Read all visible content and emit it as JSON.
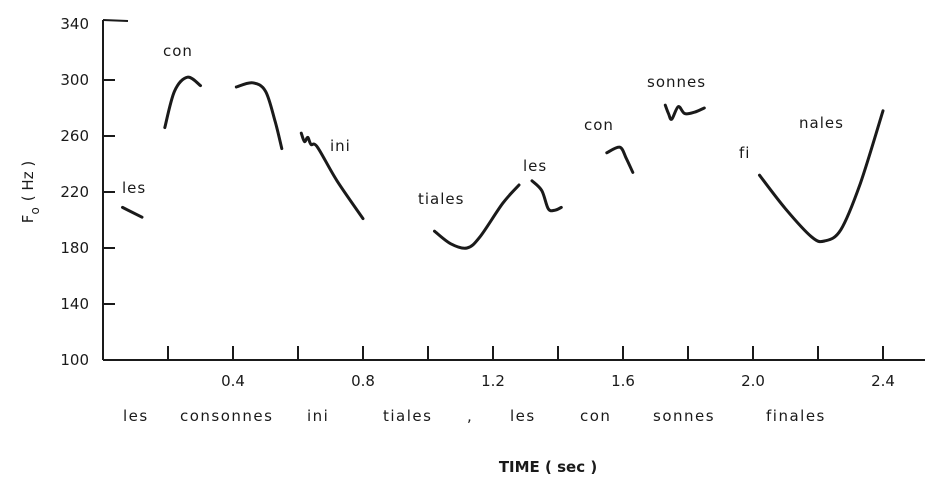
{
  "chart_data": {
    "type": "line",
    "ylabel": "F",
    "ylabel_sub": "o",
    "ylabel_unit": "( Hz )",
    "xlabel": "TIME  ( sec )",
    "xlim": [
      0.0,
      2.4
    ],
    "ylim": [
      100,
      340
    ],
    "x_ticks": [
      0.4,
      0.8,
      1.2,
      1.6,
      2.0,
      2.4
    ],
    "x_tick_labels": [
      "0.4",
      "0.8",
      "1.2",
      "1.6",
      "2.0",
      "2.4"
    ],
    "x_minor_ticks": [
      0.2,
      0.6,
      1.0,
      1.4,
      1.8,
      2.2
    ],
    "y_ticks": [
      100,
      140,
      180,
      220,
      260,
      300,
      340
    ],
    "y_tick_labels": [
      "100",
      "140",
      "180",
      "220",
      "260",
      "300",
      "340"
    ],
    "sentence": [
      "les",
      "consonnes",
      "ini",
      "tiales",
      ",",
      "les",
      "con",
      "sonnes",
      "finales"
    ],
    "segments": [
      {
        "label": "les",
        "points": [
          [
            0.06,
            209
          ],
          [
            0.12,
            202
          ]
        ]
      },
      {
        "label": "con",
        "points": [
          [
            0.19,
            266
          ],
          [
            0.22,
            292
          ],
          [
            0.26,
            302
          ],
          [
            0.3,
            296
          ]
        ]
      },
      {
        "label": "",
        "points": [
          [
            0.41,
            295
          ],
          [
            0.46,
            298
          ],
          [
            0.5,
            292
          ],
          [
            0.53,
            270
          ],
          [
            0.55,
            251
          ]
        ]
      },
      {
        "label": "ini",
        "points": [
          [
            0.61,
            262
          ],
          [
            0.62,
            256
          ],
          [
            0.63,
            259
          ],
          [
            0.64,
            254
          ],
          [
            0.66,
            252
          ],
          [
            0.72,
            228
          ],
          [
            0.8,
            201
          ]
        ]
      },
      {
        "label": "tiales",
        "points": [
          [
            1.02,
            192
          ],
          [
            1.07,
            183
          ],
          [
            1.12,
            180
          ],
          [
            1.16,
            188
          ],
          [
            1.23,
            212
          ],
          [
            1.28,
            225
          ]
        ]
      },
      {
        "label": "les",
        "points": [
          [
            1.32,
            228
          ],
          [
            1.35,
            221
          ],
          [
            1.37,
            208
          ],
          [
            1.39,
            207
          ],
          [
            1.41,
            209
          ]
        ]
      },
      {
        "label": "con",
        "points": [
          [
            1.55,
            248
          ],
          [
            1.59,
            252
          ],
          [
            1.61,
            244
          ],
          [
            1.63,
            234
          ]
        ]
      },
      {
        "label": "sonnes",
        "points": [
          [
            1.73,
            282
          ],
          [
            1.74,
            276
          ],
          [
            1.75,
            272
          ],
          [
            1.77,
            281
          ],
          [
            1.79,
            276
          ],
          [
            1.82,
            277
          ],
          [
            1.85,
            280
          ]
        ]
      },
      {
        "label": "fi",
        "points": [
          [
            2.02,
            232
          ],
          [
            2.1,
            208
          ],
          [
            2.18,
            188
          ],
          [
            2.22,
            185
          ],
          [
            2.27,
            193
          ],
          [
            2.33,
            226
          ],
          [
            2.4,
            278
          ]
        ]
      }
    ],
    "segment_labels": [
      "nales"
    ]
  }
}
